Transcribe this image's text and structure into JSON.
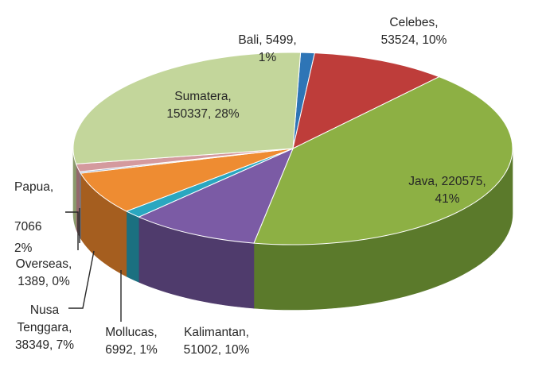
{
  "chart_data": {
    "type": "pie",
    "three_d": true,
    "title": "",
    "legend": "none",
    "slices": [
      {
        "name": "Bali",
        "value": 5499,
        "percent": "1%",
        "color": "#2e75b6",
        "side_color": "#1e4f7d",
        "label": [
          "Bali, 5499,",
          "1%"
        ]
      },
      {
        "name": "Celebes",
        "value": 53524,
        "percent": "10%",
        "color": "#be3d3a",
        "side_color": "#7f2826",
        "label": [
          "Celebes,",
          "53524, 10%"
        ]
      },
      {
        "name": "Java",
        "value": 220575,
        "percent": "41%",
        "color": "#8db044",
        "side_color": "#5b7a2b",
        "label": [
          "Java, 220575,",
          "41%"
        ]
      },
      {
        "name": "Kalimantan",
        "value": 51002,
        "percent": "10%",
        "color": "#7b5ba5",
        "side_color": "#4f3b6c",
        "label": [
          "Kalimantan,",
          "51002, 10%"
        ]
      },
      {
        "name": "Mollucas",
        "value": 6992,
        "percent": "1%",
        "color": "#2aa7c0",
        "side_color": "#1b7080",
        "label": [
          "Mollucas,",
          "6992, 1%"
        ]
      },
      {
        "name": "Nusa Tenggara",
        "value": 38349,
        "percent": "7%",
        "color": "#ee8c32",
        "side_color": "#a55e1f",
        "label": [
          "Nusa",
          "Tenggara,",
          "38349, 7%"
        ]
      },
      {
        "name": "Overseas",
        "value": 1389,
        "percent": "0%",
        "color": "#9fb6d6",
        "side_color": "#6c7f98",
        "label": [
          "Overseas,",
          "1389, 0%"
        ]
      },
      {
        "name": "Papua",
        "value": 7066,
        "percent": "2%",
        "color": "#d49a9e",
        "side_color": "#94686b",
        "label": [
          "Papua,",
          "7066",
          "2%"
        ]
      },
      {
        "name": "Sumatera",
        "value": 150337,
        "percent": "28%",
        "color": "#c3d69b",
        "side_color": "#8a9a6c",
        "label": [
          "Sumatera,",
          "150337, 28%"
        ]
      }
    ]
  }
}
